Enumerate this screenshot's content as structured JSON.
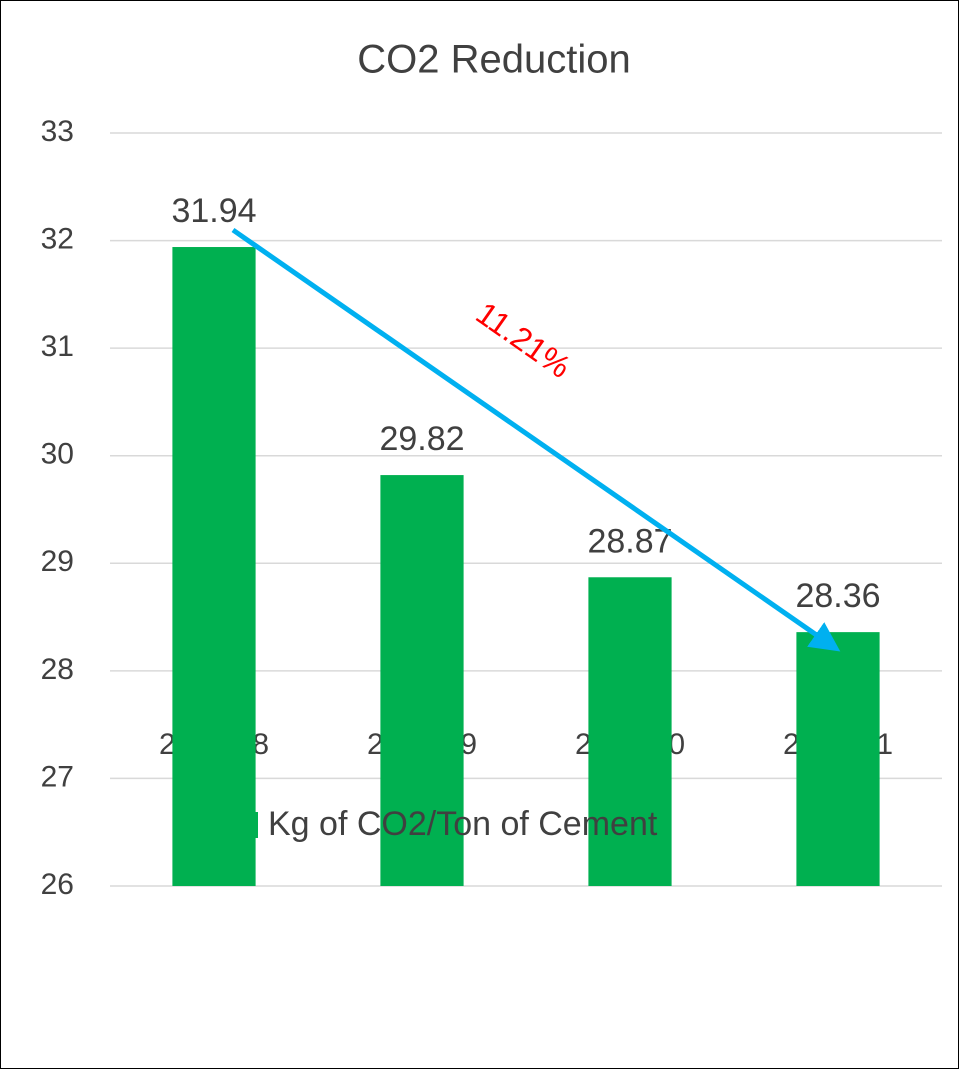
{
  "chart_data": {
    "type": "bar",
    "title": "CO2 Reduction",
    "categories": [
      "2017-18",
      "2018-19",
      "2019-20",
      "2020-21"
    ],
    "series": [
      {
        "name": "Kg of CO2/Ton of Cement",
        "color": "#00b050",
        "values": [
          31.94,
          29.82,
          28.87,
          28.36
        ]
      }
    ],
    "ylim": [
      26,
      33
    ],
    "yticks": [
      26,
      27,
      28,
      29,
      30,
      31,
      32,
      33
    ],
    "grid": true,
    "annotation": "11.21%",
    "legend": "bottom"
  }
}
